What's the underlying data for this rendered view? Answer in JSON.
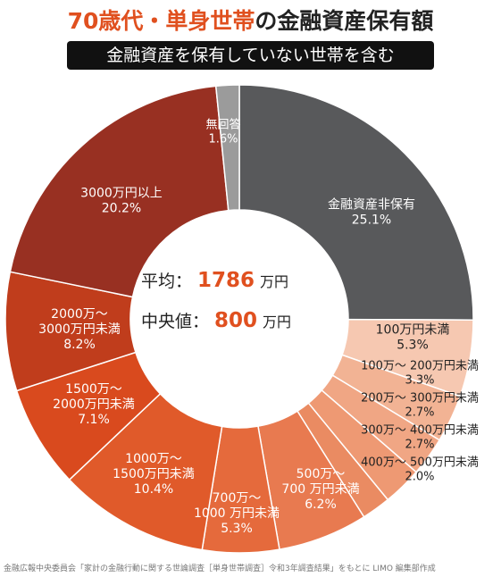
{
  "title": {
    "highlight": "70歳代・単身世帯",
    "rest": "の金融資産保有額"
  },
  "subtitle": "金融資産を保有していない世帯を含む",
  "center": {
    "mean_label": "平均：",
    "mean_value": "1786",
    "mean_unit": "万円",
    "median_label": "中央値：",
    "median_value": "800",
    "median_unit": "万円"
  },
  "footer": "金融広報中央委員会「家計の金融行動に関する世論調査［単身世帯調査］令和3年調査結果」をもとに LIMO 編集部作成",
  "chart_data": {
    "type": "pie",
    "categories": [
      "金融資産非保有",
      "100万円未満",
      "100万〜 200万円未満",
      "200万〜 300万円未満",
      "300万〜 400万円未満",
      "400万〜 500万円未満",
      "500万〜 700 万円未満",
      "700万〜 1000 万円未満",
      "1000万〜 1500万円未満",
      "1500万〜 2000万円未満",
      "2000万〜 3000万円未満",
      "3000万円以上",
      "無回答"
    ],
    "values": [
      25.1,
      5.3,
      3.3,
      2.7,
      2.7,
      2.0,
      6.2,
      5.3,
      10.4,
      7.1,
      8.2,
      20.2,
      1.6
    ],
    "value_labels": [
      "25.1%",
      "5.3%",
      "3.3%",
      "2.7%",
      "2.7%",
      "2.0%",
      "6.2%",
      "5.3%",
      "10.4%",
      "7.1%",
      "8.2%",
      "20.2%",
      "1.6%"
    ],
    "colors": [
      "#58595b",
      "#f6c8b1",
      "#f2b394",
      "#f0a684",
      "#ee9973",
      "#ea8b62",
      "#e87a50",
      "#e56a3c",
      "#e05a2a",
      "#d94a1e",
      "#c03d1c",
      "#983022",
      "#9b9b9b"
    ],
    "label_colors": [
      "#ffffff",
      "#222222",
      "#222222",
      "#222222",
      "#222222",
      "#222222",
      "#ffffff",
      "#ffffff",
      "#ffffff",
      "#ffffff",
      "#ffffff",
      "#ffffff",
      "#ffffff"
    ]
  }
}
